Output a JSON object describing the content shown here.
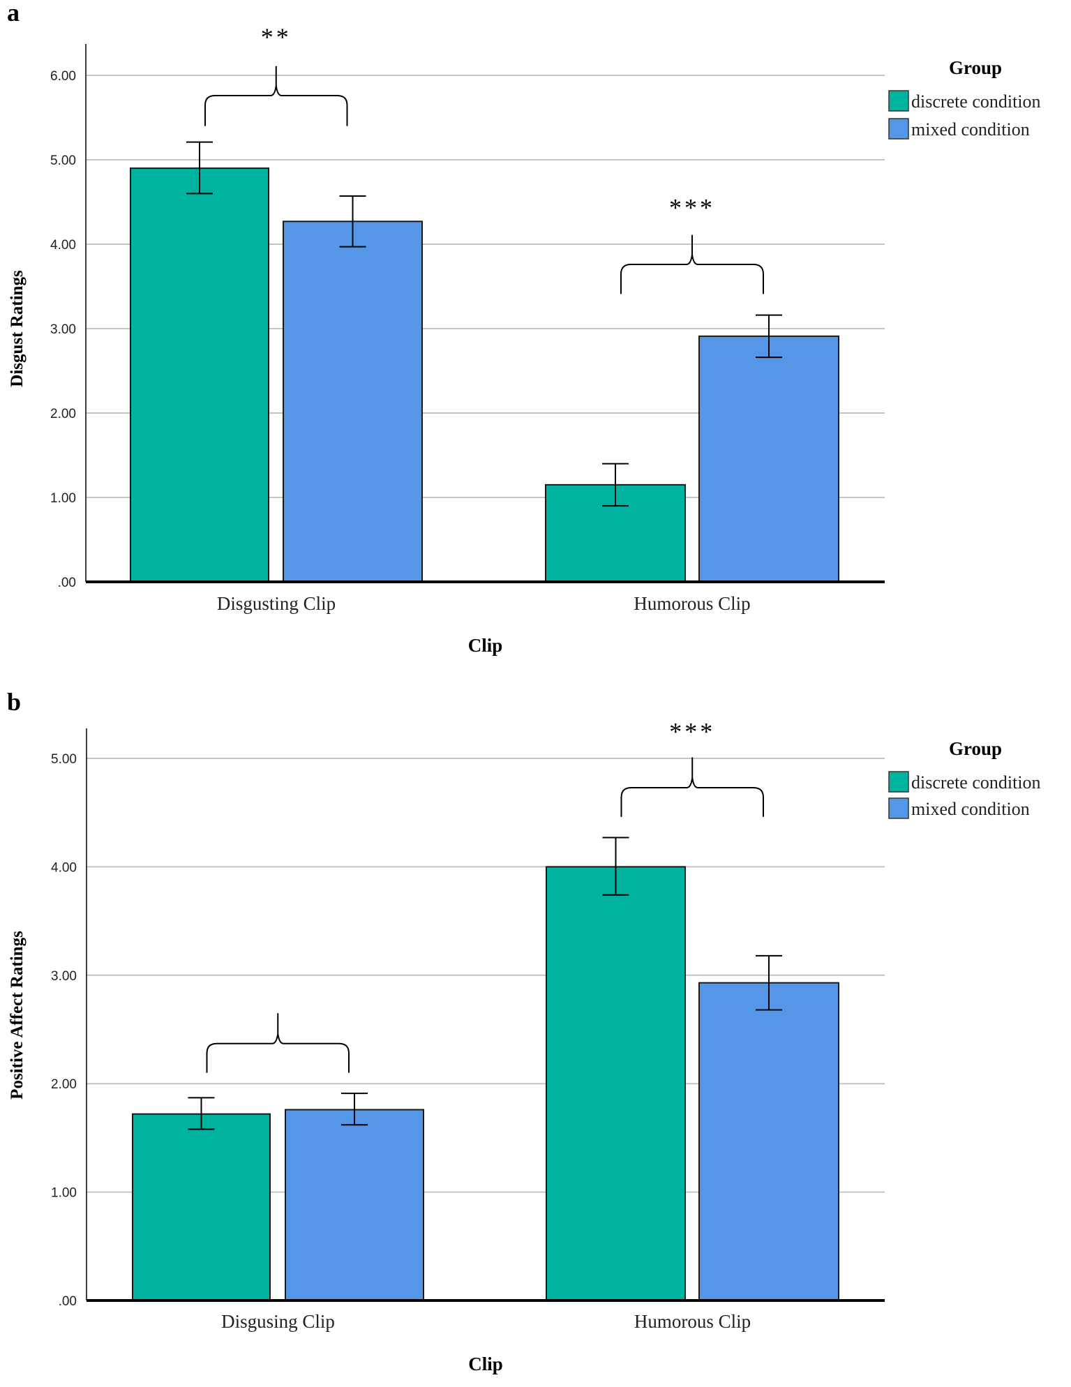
{
  "colors": {
    "discrete": "#00B2A0",
    "mixed": "#5596E6",
    "grid": "#C4C4C4",
    "axis": "#000000"
  },
  "chart_data": [
    {
      "panel_label": "a",
      "type": "bar",
      "title": "",
      "xlabel": "Clip",
      "ylabel": "Disgust Ratings",
      "ylim": [
        0,
        6
      ],
      "yticks": [
        0,
        1,
        2,
        3,
        4,
        5,
        6
      ],
      "ytick_labels": [
        ".00",
        "1.00",
        "2.00",
        "3.00",
        "4.00",
        "5.00",
        "6.00"
      ],
      "grid": true,
      "categories": [
        "Disgusting Clip",
        "Humorous Clip"
      ],
      "legend": {
        "title": "Group",
        "placement": "top-right",
        "entries": [
          "discrete condition",
          "mixed condition"
        ]
      },
      "series": [
        {
          "name": "discrete condition",
          "values": [
            4.9,
            1.15
          ],
          "ci_low": [
            4.6,
            0.9
          ],
          "ci_high": [
            5.21,
            1.4
          ]
        },
        {
          "name": "mixed condition",
          "values": [
            4.27,
            2.91
          ],
          "ci_low": [
            3.97,
            2.66
          ],
          "ci_high": [
            4.57,
            3.16
          ]
        }
      ],
      "annotations": [
        {
          "category": 0,
          "text": "**",
          "bracket_ends": 5.4,
          "bracket_top": 5.76,
          "bracket_peak": 6.11,
          "text_y": 6.47
        },
        {
          "category": 1,
          "text": "***",
          "bracket_ends": 3.41,
          "bracket_top": 3.76,
          "bracket_peak": 4.11,
          "text_y": 4.45
        }
      ]
    },
    {
      "panel_label": "b",
      "type": "bar",
      "title": "",
      "xlabel": "Clip",
      "ylabel": "Positive Affect Ratings",
      "ylim": [
        0,
        5.3
      ],
      "yticks": [
        0,
        1,
        2,
        3,
        4,
        5
      ],
      "ytick_labels": [
        ".00",
        "1.00",
        "2.00",
        "3.00",
        "4.00",
        "5.00"
      ],
      "grid": true,
      "categories": [
        "Disgusing Clip",
        "Humorous Clip"
      ],
      "legend": {
        "title": "Group",
        "placement": "top-right",
        "entries": [
          "discrete condition",
          "mixed condition"
        ]
      },
      "series": [
        {
          "name": "discrete condition",
          "values": [
            1.72,
            4.0
          ],
          "ci_low": [
            1.58,
            3.74
          ],
          "ci_high": [
            1.87,
            4.27
          ]
        },
        {
          "name": "mixed condition",
          "values": [
            1.76,
            2.93
          ],
          "ci_low": [
            1.62,
            2.68
          ],
          "ci_high": [
            1.91,
            3.18
          ]
        }
      ],
      "annotations": [
        {
          "category": 0,
          "text": "",
          "bracket_ends": 2.1,
          "bracket_top": 2.37,
          "bracket_peak": 2.65,
          "text_y": 2.9
        },
        {
          "category": 1,
          "text": "***",
          "bracket_ends": 4.46,
          "bracket_top": 4.73,
          "bracket_peak": 5.01,
          "text_y": 5.26
        }
      ]
    }
  ]
}
